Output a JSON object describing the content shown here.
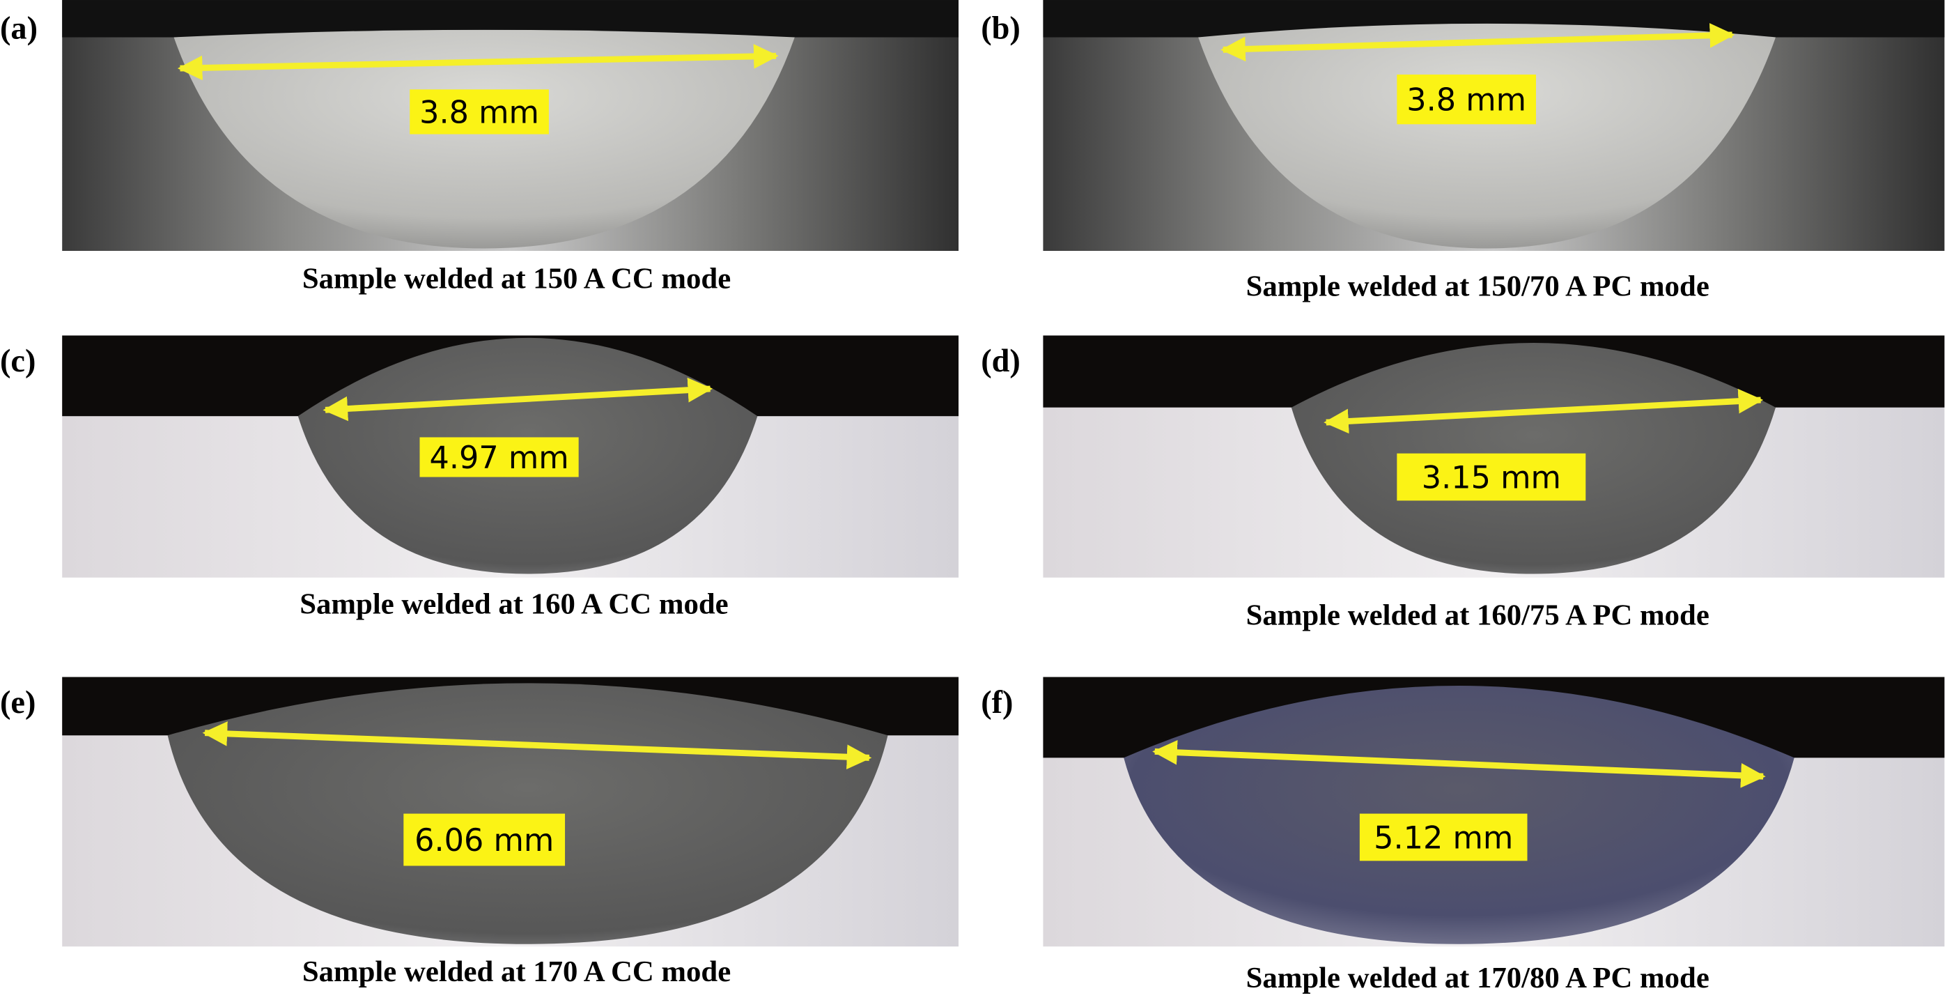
{
  "panels": [
    {
      "label": "(a)",
      "measurement": "3.8 mm",
      "caption": "Sample welded at 150 A CC mode"
    },
    {
      "label": "(b)",
      "measurement": "3.8 mm",
      "caption": "Sample welded at 150/70 A PC mode"
    },
    {
      "label": "(c)",
      "measurement": "4.97 mm",
      "caption": "Sample welded at 160 A CC mode"
    },
    {
      "label": "(d)",
      "measurement": "3.15 mm",
      "caption": "Sample welded at 160/75 A PC mode"
    },
    {
      "label": "(e)",
      "measurement": "6.06 mm",
      "caption": "Sample welded at 170 A CC mode"
    },
    {
      "label": "(f)",
      "measurement": "5.12 mm",
      "caption": "Sample welded at 170/80 A PC mode"
    }
  ]
}
